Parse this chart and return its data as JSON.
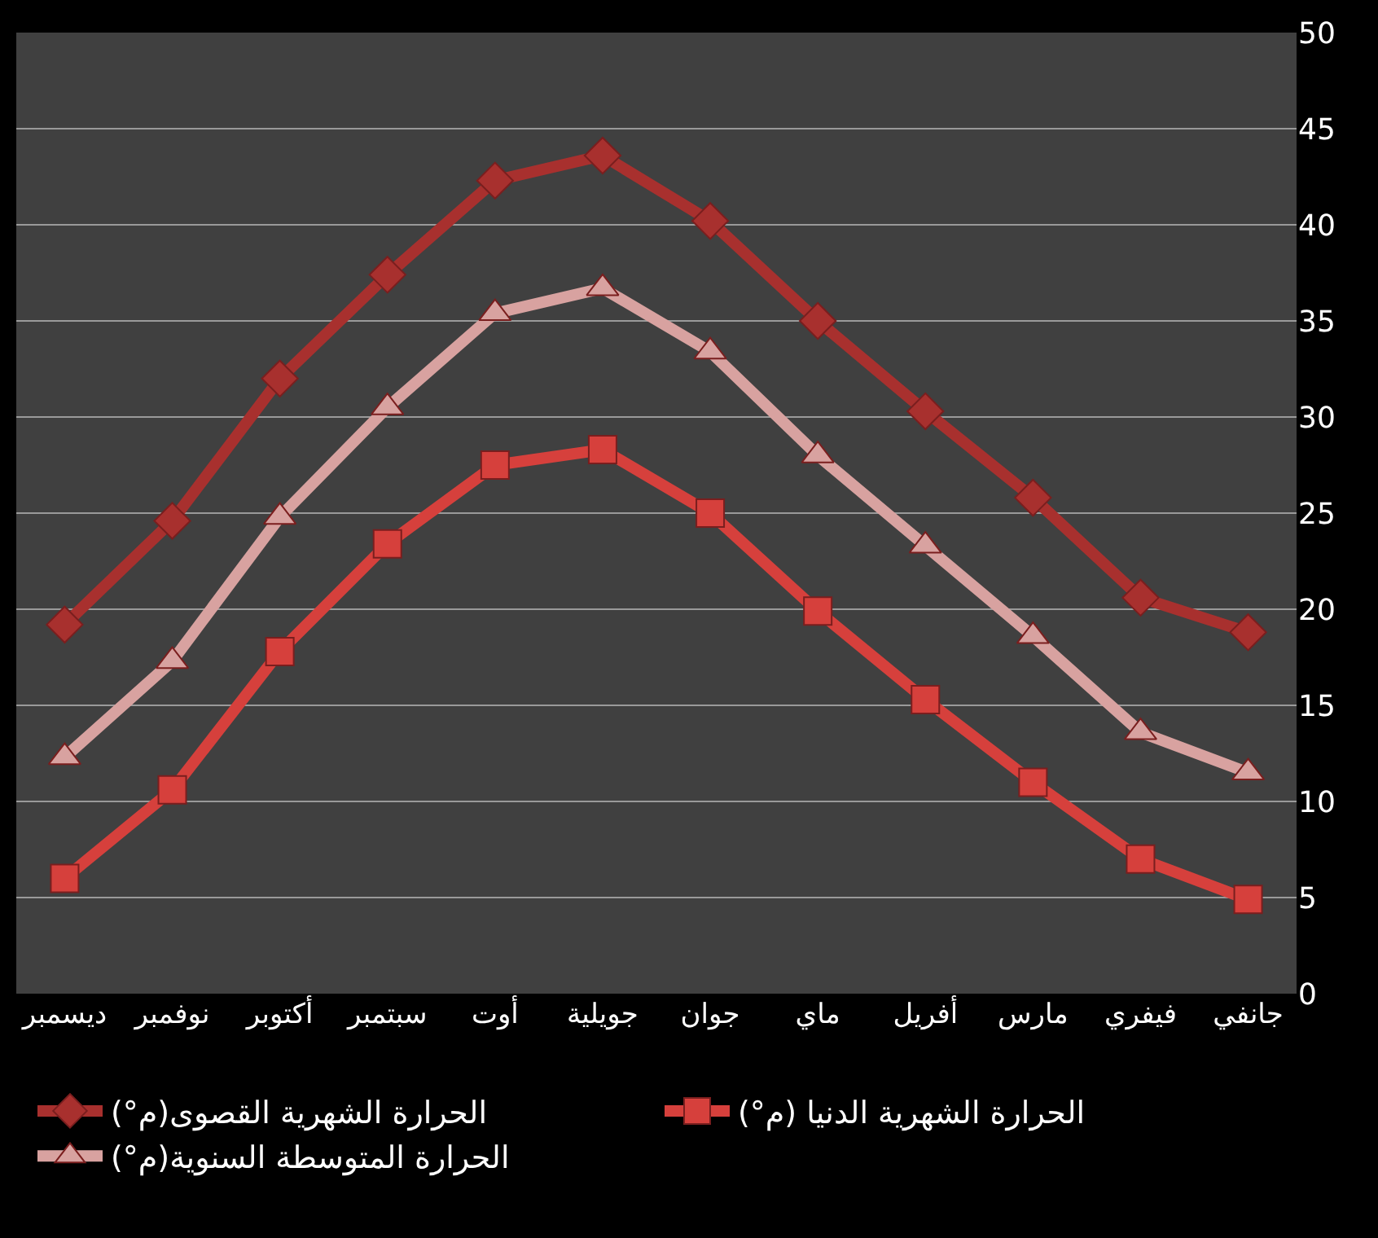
{
  "chart_data": {
    "type": "line",
    "categories": [
      "ديسمبر",
      "نوفمبر",
      "أكتوبر",
      "سبتمبر",
      "أوت",
      "جويلية",
      "جوان",
      "ماي",
      "أفريل",
      "مارس",
      "فيفري",
      "جانفي"
    ],
    "series": [
      {
        "name": "الحرارة الشهرية القصوى(م°)",
        "color": "#a8302e",
        "marker": "diamond",
        "values": [
          19.2,
          24.6,
          32,
          37.4,
          42.3,
          43.6,
          40.2,
          35,
          30.3,
          25.8,
          20.6,
          18.8
        ]
      },
      {
        "name": "الحرارة الشهرية الدنيا (م°)",
        "color": "#d6403c",
        "marker": "square",
        "values": [
          6,
          10.6,
          17.8,
          23.4,
          27.5,
          28.3,
          25,
          19.9,
          15.3,
          11,
          7,
          4.9
        ]
      },
      {
        "name": "الحرارة المتوسطة السنوية(م°)",
        "color": "#d8a2a0",
        "marker": "triangle",
        "values": [
          12.3,
          17.3,
          24.8,
          30.5,
          35.4,
          36.7,
          33.4,
          28,
          23.3,
          18.6,
          13.6,
          11.5
        ]
      }
    ],
    "ylim": [
      0,
      50
    ],
    "yticks": [
      0,
      5,
      10,
      15,
      20,
      25,
      30,
      35,
      40,
      45,
      50
    ],
    "grid": "y",
    "legend": "bottom",
    "line_style": "solid"
  }
}
